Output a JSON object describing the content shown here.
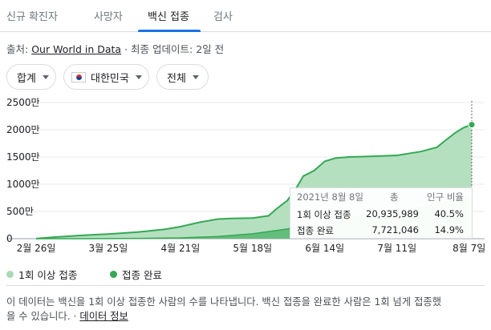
{
  "tabs": [
    {
      "label": "신규 확진자",
      "active": false
    },
    {
      "label": "사망자",
      "active": false
    },
    {
      "label": "백신 접종",
      "active": true
    },
    {
      "label": "검사",
      "active": false
    }
  ],
  "source": {
    "prefix": "출처:",
    "link": "Our World in Data",
    "separator": "·",
    "updated": "최종 업데이트: 2일 전"
  },
  "filters": {
    "metric": "합계",
    "country": "대한민국",
    "scope": "전체",
    "country_flag_icon": "south-korea-flag-icon"
  },
  "chart_data": {
    "type": "area",
    "y_ticks": [
      "0",
      "500만",
      "1000만",
      "1500만",
      "2000만",
      "2500만"
    ],
    "ylim": [
      0,
      25000000
    ],
    "x_labels": [
      "2월 26일",
      "3월 25일",
      "4월 21일",
      "5월 18일",
      "6월 14일",
      "7월 11일",
      "8월 7일"
    ],
    "x_dates": [
      "2021-02-26",
      "2021-03-25",
      "2021-04-21",
      "2021-05-18",
      "2021-06-14",
      "2021-07-11",
      "2021-08-07"
    ],
    "grid": true,
    "series": [
      {
        "name": "1회 이상 접종",
        "color": "#a8dab5",
        "x": [
          "2021-02-26",
          "2021-03-05",
          "2021-03-15",
          "2021-03-25",
          "2021-04-05",
          "2021-04-15",
          "2021-04-21",
          "2021-04-28",
          "2021-05-05",
          "2021-05-10",
          "2021-05-18",
          "2021-05-24",
          "2021-05-27",
          "2021-05-31",
          "2021-06-03",
          "2021-06-06",
          "2021-06-10",
          "2021-06-14",
          "2021-06-18",
          "2021-06-23",
          "2021-07-01",
          "2021-07-11",
          "2021-07-20",
          "2021-07-26",
          "2021-07-29",
          "2021-08-02",
          "2021-08-05",
          "2021-08-08"
        ],
        "values": [
          20000,
          300000,
          600000,
          850000,
          1200000,
          1700000,
          2200000,
          3000000,
          3600000,
          3700000,
          3800000,
          4200000,
          5500000,
          7000000,
          9000000,
          11500000,
          12500000,
          14200000,
          14800000,
          15000000,
          15100000,
          15300000,
          16000000,
          16800000,
          18000000,
          19500000,
          20400000,
          20935989
        ]
      },
      {
        "name": "접종 완료",
        "color": "#34a853",
        "x": [
          "2021-02-26",
          "2021-03-15",
          "2021-03-25",
          "2021-04-05",
          "2021-04-21",
          "2021-05-05",
          "2021-05-18",
          "2021-05-27",
          "2021-06-03",
          "2021-06-14",
          "2021-06-23",
          "2021-07-01",
          "2021-07-11",
          "2021-07-20",
          "2021-07-26",
          "2021-08-02",
          "2021-08-08"
        ],
        "values": [
          0,
          5000,
          15000,
          60000,
          150000,
          400000,
          900000,
          1500000,
          2000000,
          2500000,
          3800000,
          4400000,
          5100000,
          5800000,
          6400000,
          7100000,
          7721046
        ]
      }
    ],
    "tooltip": {
      "date": "2021년 8월 8일",
      "col_total": "총",
      "col_ratio": "인구 비율",
      "rows": [
        {
          "label": "1회 이상 접종",
          "total": "20,935,989",
          "ratio": "40.5%"
        },
        {
          "label": "접종 완료",
          "total": "7,721,046",
          "ratio": "14.9%"
        }
      ]
    }
  },
  "legend": [
    {
      "label": "1회 이상 접종",
      "color": "#a8dab5"
    },
    {
      "label": "접종 완료",
      "color": "#34a853"
    }
  ],
  "footer": {
    "note_line1": "이 데이터는 백신을 1회 이상 접종한 사람의 수를 나타냅니다. 백신 접종을 완료한 사람은 1회 넘게 접종했",
    "note_line2": "을 수 있습니다.",
    "separator": "·",
    "link": "데이터 정보"
  }
}
